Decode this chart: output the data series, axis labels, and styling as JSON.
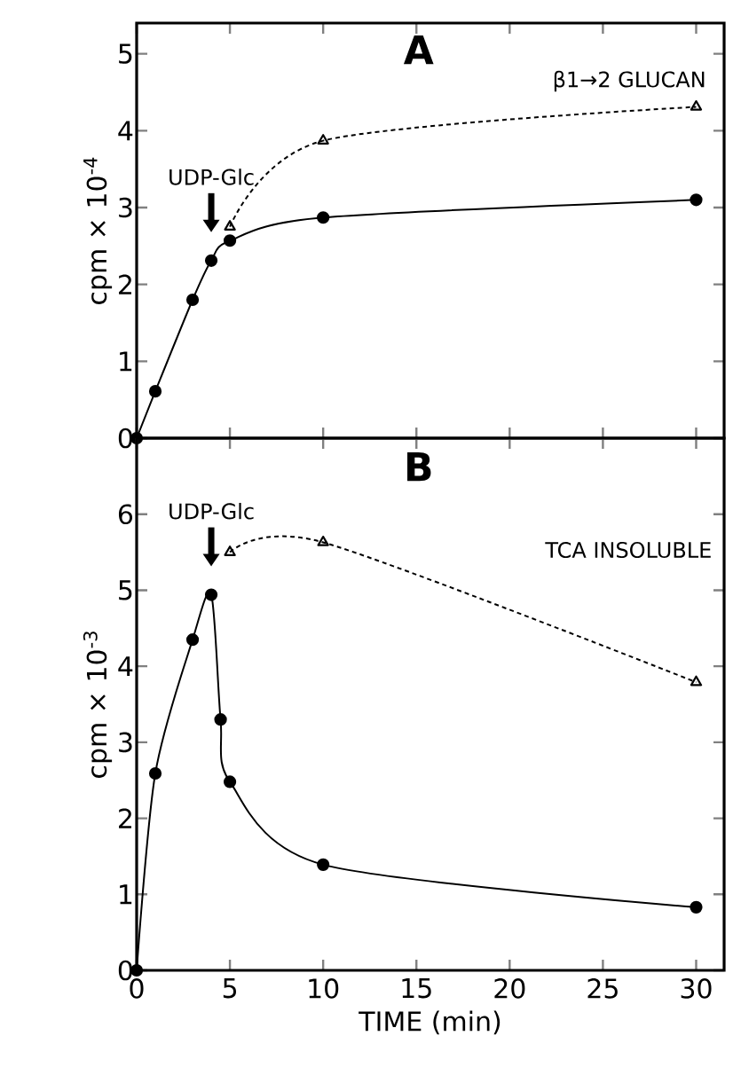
{
  "chart_data": [
    {
      "type": "line",
      "title": "A",
      "ylabel": "cpm × 10$^{-4}$",
      "xlim": [
        0,
        31.5
      ],
      "ylim": [
        0,
        5.4
      ],
      "xticks": [
        0,
        5,
        10,
        15,
        20,
        25,
        30
      ],
      "yticks": [
        0,
        1,
        2,
        3,
        4,
        5
      ],
      "tick_labels": "y",
      "legend": false,
      "series": [
        {
          "color": "#000000",
          "marker": "circle",
          "line_style": "solid",
          "x": [
            0,
            1,
            3,
            4,
            5,
            10,
            30
          ],
          "values": [
            0,
            0.61,
            1.8,
            2.31,
            2.57,
            2.87,
            3.1
          ]
        },
        {
          "name": "β1→2 GLUCAN",
          "color": "#000000",
          "marker": "triangle",
          "line_style": "dashed",
          "x": [
            5,
            10,
            30
          ],
          "values": [
            2.75,
            3.87,
            4.31
          ]
        }
      ],
      "annotations": [
        "UDP-Glc"
      ]
    },
    {
      "type": "line",
      "title": "B",
      "xlabel": "TIME (min)",
      "ylabel": "cpm × 10$^{-3}$",
      "xlim": [
        0,
        31.5
      ],
      "ylim": [
        0,
        7
      ],
      "xticks": [
        0,
        5,
        10,
        15,
        20,
        25,
        30
      ],
      "yticks": [
        0,
        1,
        2,
        3,
        4,
        5,
        6
      ],
      "legend": false,
      "series": [
        {
          "color": "#000000",
          "marker": "circle",
          "line_style": "solid",
          "x": [
            0,
            1,
            3,
            4,
            4.5,
            5,
            10,
            30
          ],
          "values": [
            0,
            2.59,
            4.35,
            4.94,
            3.3,
            2.48,
            1.39,
            0.83
          ]
        },
        {
          "name": "TCA INSOLUBLE",
          "color": "#000000",
          "marker": "triangle",
          "line_style": "dashed",
          "x": [
            5,
            10,
            30
          ],
          "values": [
            5.5,
            5.63,
            3.79
          ]
        }
      ],
      "annotations": [
        "UDP-Glc"
      ]
    }
  ]
}
